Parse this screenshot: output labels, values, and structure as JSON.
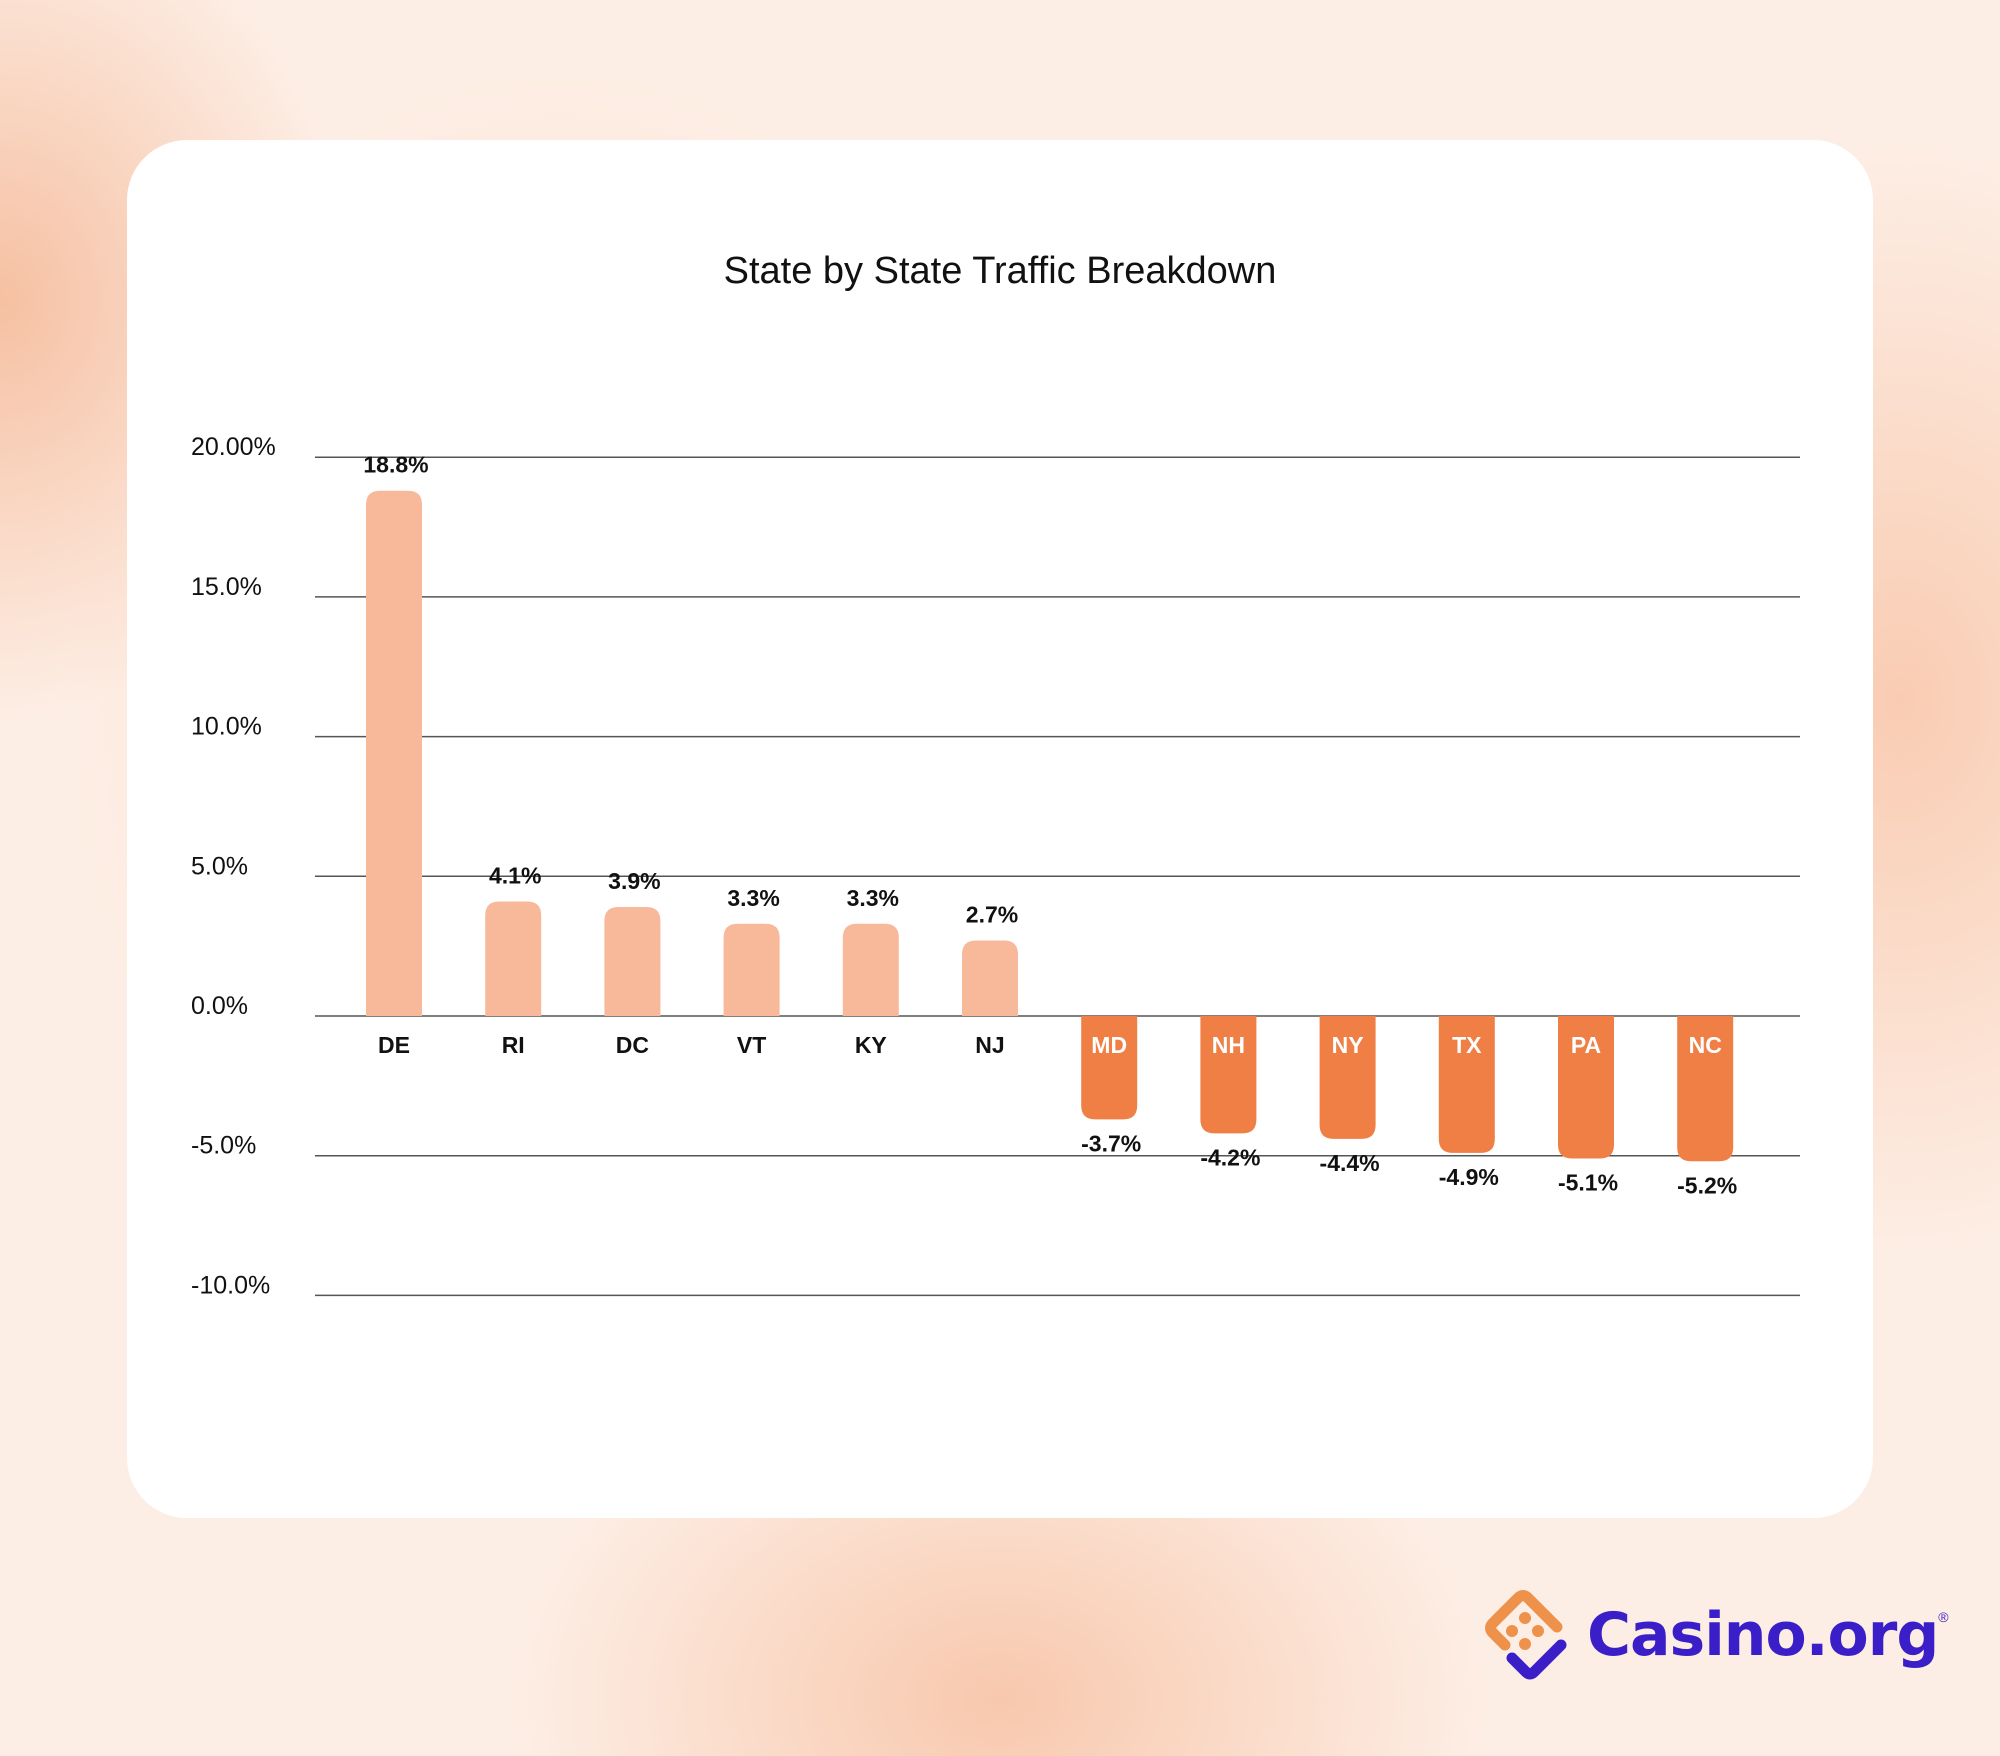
{
  "chart_data": {
    "type": "bar",
    "title": "State by State Traffic Breakdown",
    "xlabel": "",
    "ylabel": "",
    "ylim": [
      -10,
      20
    ],
    "yticks": [
      {
        "value": 20,
        "label": "20.00%"
      },
      {
        "value": 15,
        "label": "15.0%"
      },
      {
        "value": 10,
        "label": "10.0%"
      },
      {
        "value": 5,
        "label": "5.0%"
      },
      {
        "value": 0,
        "label": "0.0%"
      },
      {
        "value": -5,
        "label": "-5.0%"
      },
      {
        "value": -10,
        "label": "-10.0%"
      }
    ],
    "grid": true,
    "categories": [
      "DE",
      "RI",
      "DC",
      "VT",
      "KY",
      "NJ",
      "MD",
      "NH",
      "NY",
      "TX",
      "PA",
      "NC"
    ],
    "values": [
      18.8,
      4.1,
      3.9,
      3.3,
      3.3,
      2.7,
      -3.7,
      -4.2,
      -4.4,
      -4.9,
      -5.1,
      -5.2
    ],
    "data_labels": [
      "18.8%",
      "4.1%",
      "3.9%",
      "3.3%",
      "3.3%",
      "2.7%",
      "-3.7%",
      "-4.2%",
      "-4.4%",
      "-4.9%",
      "-5.1%",
      "-5.2%"
    ],
    "colors": {
      "positive": "#F8B89A",
      "negative": "#EF7F45"
    }
  },
  "brand": {
    "name": "Casino.org",
    "registered": "®",
    "colors": {
      "orange": "#EE914B",
      "purple": "#3A1FC8"
    }
  }
}
